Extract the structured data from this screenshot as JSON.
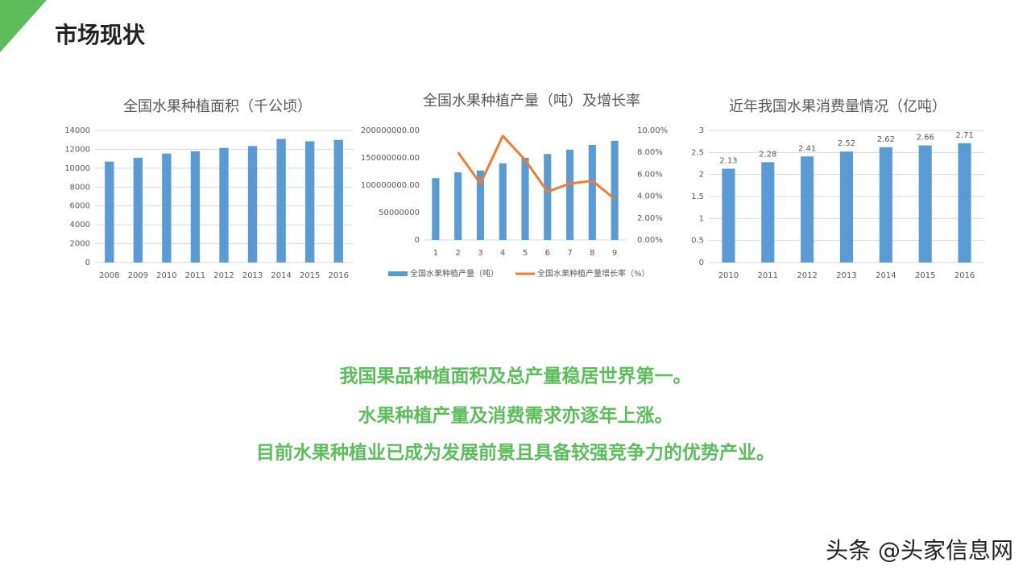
{
  "header": {
    "title": "市场现状"
  },
  "body": {
    "lines": [
      "我国果品种植面积及总产量稳居世界第一。",
      "水果种植产量及消费需求亦逐年上涨。",
      "目前水果种植业已成为发展前景且具备较强竞争力的优势产业。"
    ]
  },
  "watermark": "头条 @头家信息网",
  "chart_data": [
    {
      "type": "bar",
      "title": "全国水果种植面积（千公顷）",
      "categories": [
        "2008",
        "2009",
        "2010",
        "2011",
        "2012",
        "2013",
        "2014",
        "2015",
        "2016"
      ],
      "values": [
        10700,
        11100,
        11550,
        11800,
        12150,
        12350,
        13100,
        12850,
        13000
      ],
      "color": "#5b9bd5",
      "ylim": [
        0,
        14000
      ],
      "yticks": [
        0,
        2000,
        4000,
        6000,
        8000,
        10000,
        12000,
        14000
      ],
      "grid": true
    },
    {
      "type": "combo",
      "title": "全国水果种植产量（吨）及增长率",
      "categories": [
        "1",
        "2",
        "3",
        "4",
        "5",
        "6",
        "7",
        "8",
        "9"
      ],
      "series": [
        {
          "name": "全国水果种植产量（吨）",
          "type": "bar",
          "color": "#5b9bd5",
          "values": [
            113000000,
            123500000,
            127000000,
            140000000,
            150000000,
            157000000,
            165000000,
            173500000,
            181000000
          ]
        },
        {
          "name": "全国水果种植产量增长率（%）",
          "type": "line",
          "color": "#ed7d31",
          "axis": "y2",
          "values": [
            null,
            8.0,
            5.15,
            9.5,
            7.3,
            4.4,
            5.15,
            5.4,
            3.75
          ]
        }
      ],
      "ylim": [
        0,
        200000000
      ],
      "yticks": [
        {
          "value": 0,
          "label": "0"
        },
        {
          "value": 50000000,
          "label": "50000000"
        },
        {
          "value": 100000000,
          "label": "100000000.00"
        },
        {
          "value": 150000000,
          "label": "150000000.00"
        },
        {
          "value": 200000000,
          "label": "200000000.00"
        }
      ],
      "y2lim": [
        0,
        10
      ],
      "y2ticks": [
        {
          "value": 0,
          "label": "0.00%"
        },
        {
          "value": 2,
          "label": "2.00%"
        },
        {
          "value": 4,
          "label": "4.00%"
        },
        {
          "value": 6,
          "label": "6.00%"
        },
        {
          "value": 8,
          "label": "8.00%"
        },
        {
          "value": 10,
          "label": "10.00%"
        }
      ],
      "grid": false,
      "legend": "bottom"
    },
    {
      "type": "bar",
      "title": "近年我国水果消费量情况（亿吨）",
      "categories": [
        "2010",
        "2011",
        "2012",
        "2013",
        "2014",
        "2015",
        "2016"
      ],
      "values": [
        2.13,
        2.28,
        2.41,
        2.52,
        2.62,
        2.66,
        2.71
      ],
      "color": "#5b9bd5",
      "ylim": [
        0,
        3
      ],
      "yticks": [
        0,
        0.5,
        1,
        1.5,
        2,
        2.5,
        3
      ],
      "grid": true,
      "data_labels": true
    }
  ]
}
